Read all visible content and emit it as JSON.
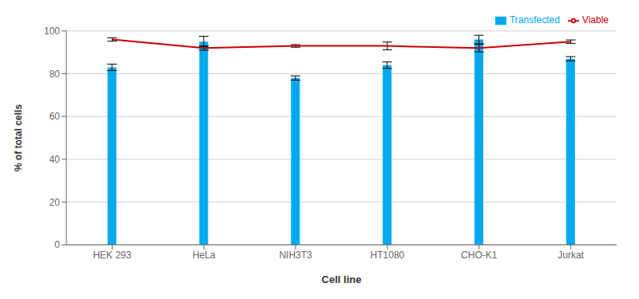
{
  "chart_data": {
    "type": "bar",
    "xlabel": "Cell line",
    "ylabel": "% of total cells",
    "categories": [
      "HEK 293",
      "HeLa",
      "NIH3T3",
      "HT1080",
      "CHO-K1",
      "Jurkat"
    ],
    "series": [
      {
        "name": "Transfected",
        "type": "bar",
        "color": "#00AAEE",
        "values": [
          83,
          95,
          78,
          84,
          96,
          87
        ],
        "errors": [
          1.5,
          2.5,
          1.0,
          1.5,
          2.0,
          1.0
        ]
      },
      {
        "name": "Viable",
        "type": "line",
        "color": "#CC0000",
        "values": [
          96,
          92,
          93,
          93,
          92,
          95
        ],
        "errors": [
          0.8,
          1.0,
          0.6,
          1.8,
          1.8,
          0.8
        ]
      }
    ],
    "ylim": [
      0,
      100
    ],
    "yticks": [
      0,
      20,
      40,
      60,
      80,
      100
    ],
    "grid": true,
    "legend": "upper right"
  }
}
